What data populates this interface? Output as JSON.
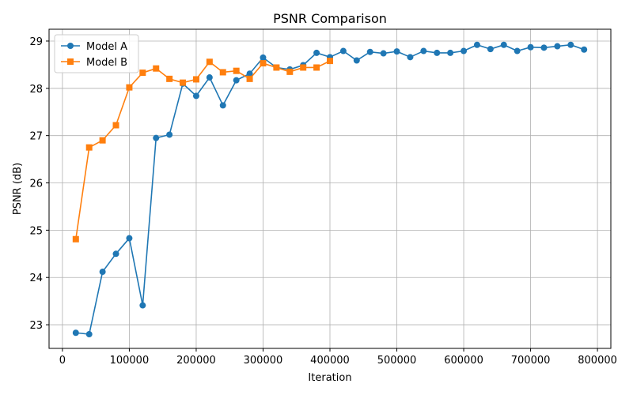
{
  "chart_data": {
    "type": "line",
    "title": "PSNR Comparison",
    "xlabel": "Iteration",
    "ylabel": "PSNR (dB)",
    "xlim": [
      -20000,
      820000
    ],
    "ylim": [
      22.5,
      29.25
    ],
    "xticks": [
      0,
      100000,
      200000,
      300000,
      400000,
      500000,
      600000,
      700000,
      800000
    ],
    "yticks": [
      23,
      24,
      25,
      26,
      27,
      28,
      29
    ],
    "grid": true,
    "legend_position": "top-left",
    "series": [
      {
        "name": "Model A",
        "color": "#1f77b4",
        "marker": "circle",
        "x": [
          20000,
          40000,
          60000,
          80000,
          100000,
          120000,
          140000,
          160000,
          180000,
          200000,
          220000,
          240000,
          260000,
          280000,
          300000,
          320000,
          340000,
          360000,
          380000,
          400000,
          420000,
          440000,
          460000,
          480000,
          500000,
          520000,
          540000,
          560000,
          580000,
          600000,
          620000,
          640000,
          660000,
          680000,
          700000,
          720000,
          740000,
          760000,
          780000
        ],
        "y": [
          22.83,
          22.8,
          24.12,
          24.5,
          24.83,
          23.41,
          26.95,
          27.02,
          28.1,
          27.84,
          28.23,
          27.64,
          28.17,
          28.31,
          28.65,
          28.44,
          28.4,
          28.49,
          28.75,
          28.66,
          28.79,
          28.59,
          28.77,
          28.74,
          28.78,
          28.66,
          28.79,
          28.75,
          28.75,
          28.79,
          28.92,
          28.83,
          28.92,
          28.79,
          28.87,
          28.86,
          28.89,
          28.92,
          28.82
        ]
      },
      {
        "name": "Model B",
        "color": "#ff7f0e",
        "marker": "square",
        "x": [
          20000,
          40000,
          60000,
          80000,
          100000,
          120000,
          140000,
          160000,
          180000,
          200000,
          220000,
          240000,
          260000,
          280000,
          300000,
          320000,
          340000,
          360000,
          380000,
          400000
        ],
        "y": [
          24.81,
          26.75,
          26.9,
          27.22,
          28.02,
          28.33,
          28.42,
          28.2,
          28.12,
          28.19,
          28.56,
          28.34,
          28.37,
          28.2,
          28.53,
          28.44,
          28.35,
          28.44,
          28.44,
          28.58
        ]
      }
    ]
  }
}
